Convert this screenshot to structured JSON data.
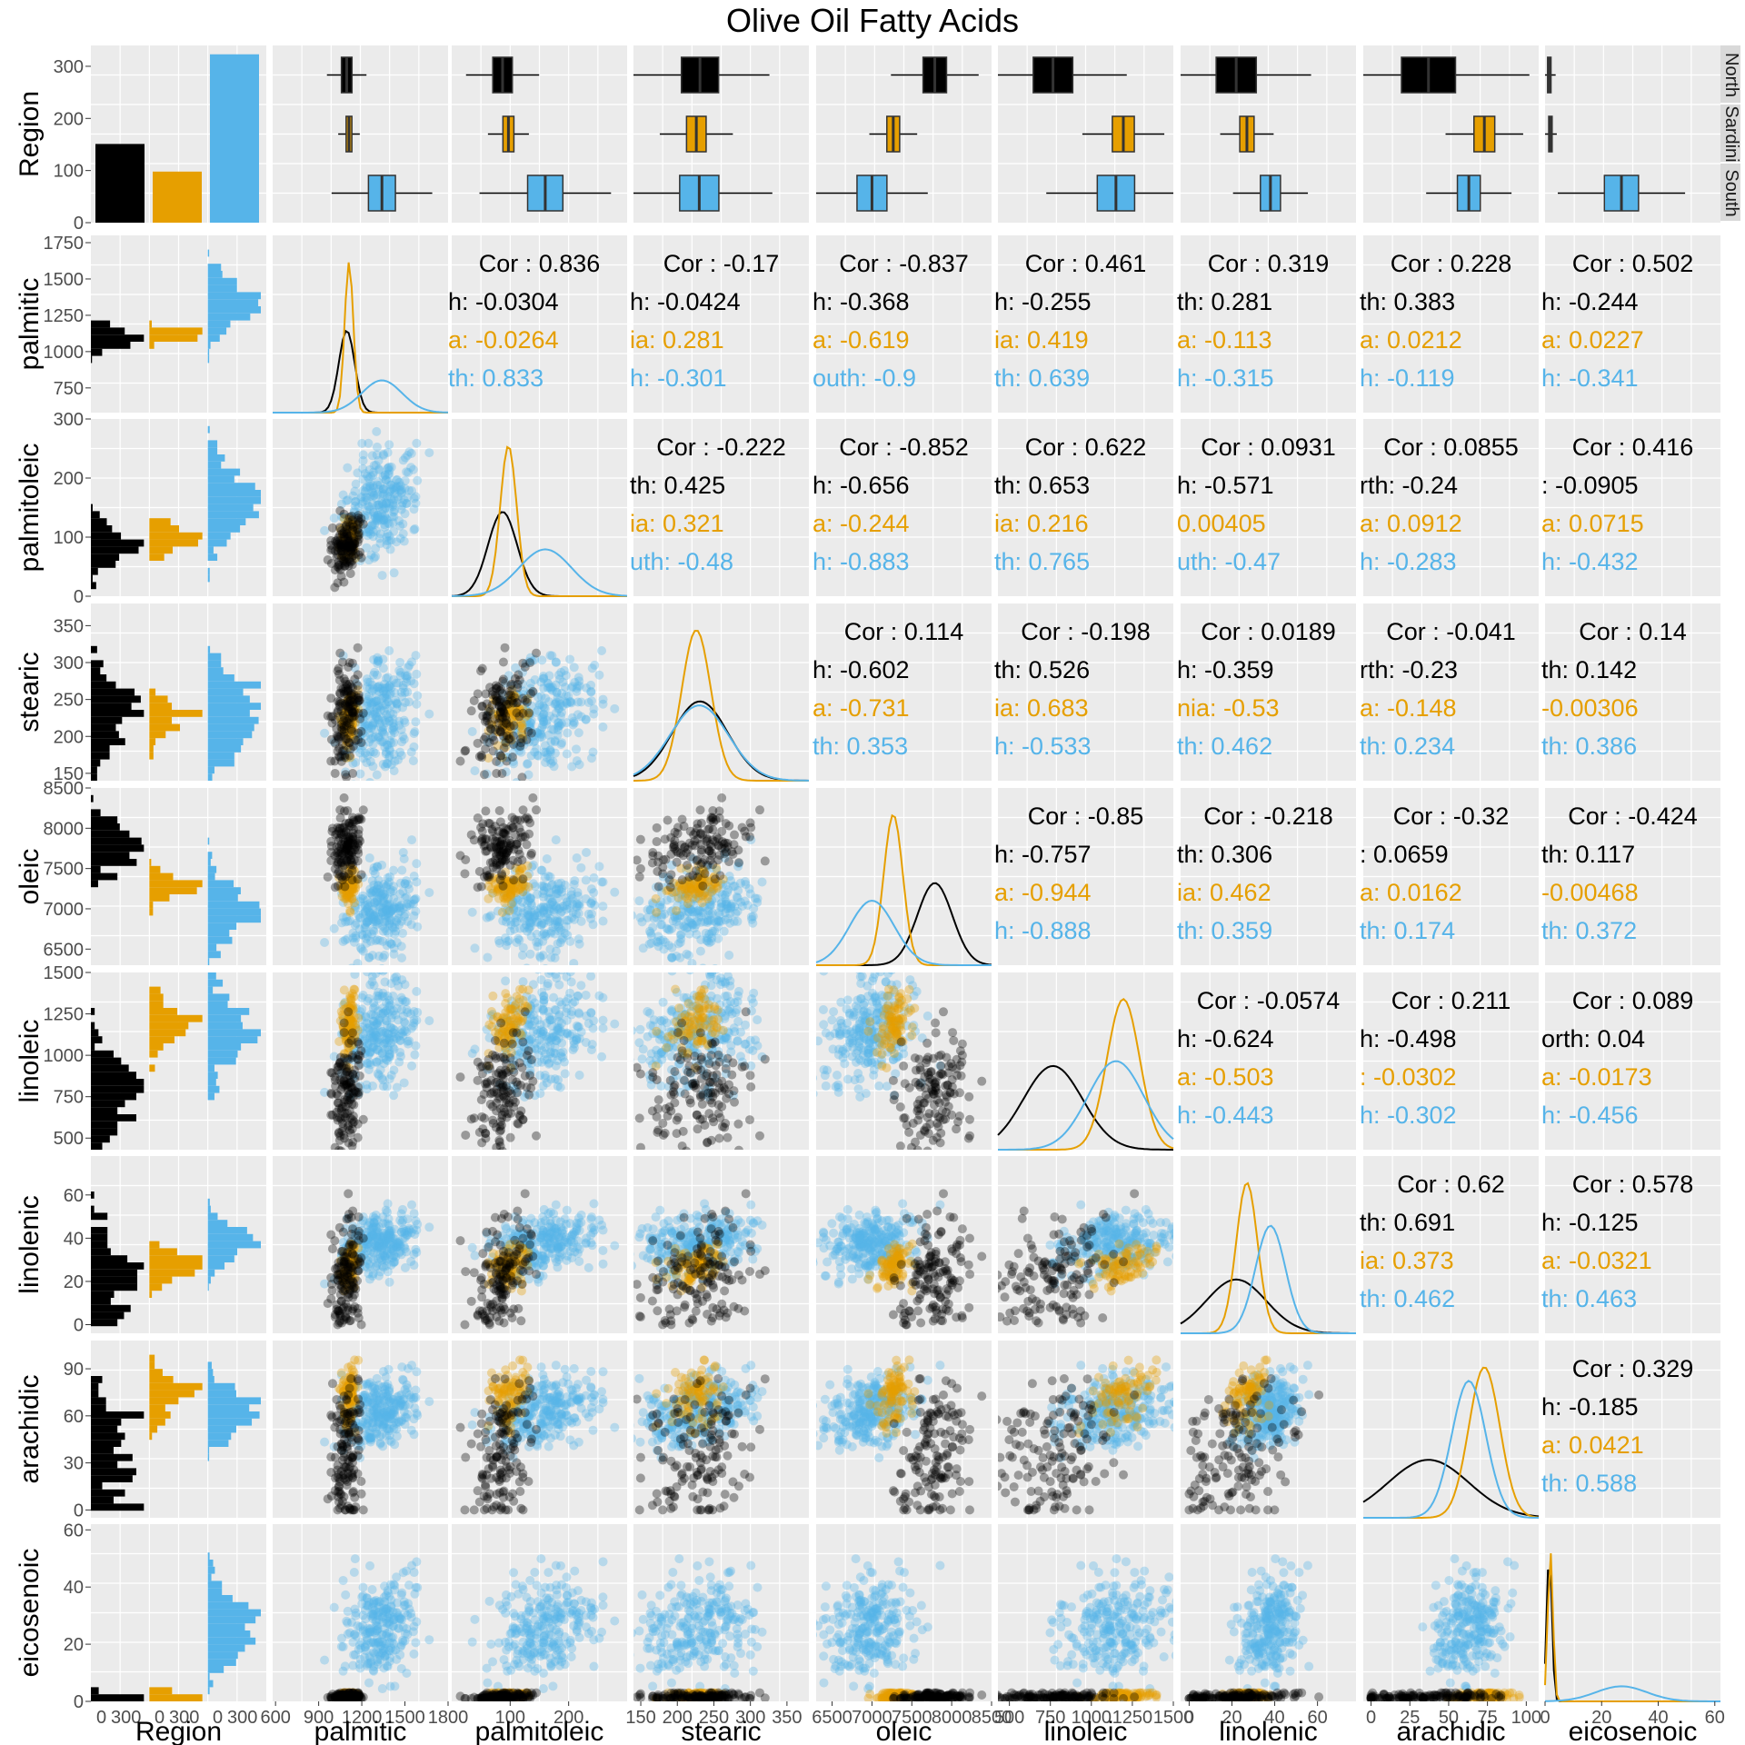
{
  "title": "Olive Oil Fatty Acids",
  "colors": {
    "North": "#000000",
    "Sardinia": "#E69F00",
    "South": "#56B4E9",
    "panel": "#ebebeb",
    "grid": "#ffffff",
    "strip": "#d9d9d9"
  },
  "chart_data": {
    "type": "scatter",
    "title": "Olive Oil Fatty Acids",
    "matrix": "pairs plot",
    "variables": [
      "Region",
      "palmitic",
      "palmitoleic",
      "stearic",
      "oleic",
      "linoleic",
      "linolenic",
      "arachidic",
      "eicosenoic"
    ],
    "groups": [
      "North",
      "Sardinia",
      "South"
    ],
    "strip_labels": [
      "North",
      "Sardini",
      "South"
    ],
    "region_counts": {
      "North": 151,
      "Sardinia": 98,
      "South": 323
    },
    "region_ticks": [
      "0",
      "300",
      "0",
      "300",
      "0",
      "300"
    ],
    "ranges": {
      "palmitic": [
        580,
        1800
      ],
      "palmitoleic": [
        0,
        300
      ],
      "stearic": [
        140,
        380
      ],
      "oleic": [
        6300,
        8500
      ],
      "linoleic": [
        430,
        1500
      ],
      "linolenic": [
        -4,
        78
      ],
      "arachidic": [
        -5,
        108
      ],
      "eicosenoic": [
        0,
        62
      ]
    },
    "x_ticks": {
      "palmitic": [
        "600",
        "900",
        "1200",
        "1500",
        "1800"
      ],
      "palmitoleic": [
        "100",
        "200"
      ],
      "stearic": [
        "150",
        "200",
        "250",
        "300",
        "350"
      ],
      "oleic": [
        "6500",
        "7000",
        "7500",
        "8000",
        "8500"
      ],
      "linoleic": [
        "500",
        "750",
        "1000",
        "1250",
        "1500"
      ],
      "linolenic": [
        "0",
        "20",
        "40",
        "60"
      ],
      "arachidic": [
        "0",
        "25",
        "50",
        "75",
        "100"
      ],
      "eicosenoic": [
        "0",
        "20",
        "40",
        "60"
      ]
    },
    "y_ticks": {
      "Region": [
        "0",
        "100",
        "200",
        "300"
      ],
      "palmitic": [
        "750",
        "1000",
        "1250",
        "1500",
        "1750"
      ],
      "palmitoleic": [
        "0",
        "100",
        "200",
        "300"
      ],
      "stearic": [
        "150",
        "200",
        "250",
        "300",
        "350"
      ],
      "oleic": [
        "6500",
        "7000",
        "7500",
        "8000",
        "8500"
      ],
      "linoleic": [
        "500",
        "750",
        "1000",
        "1250",
        "1500"
      ],
      "linolenic": [
        "0",
        "20",
        "40",
        "60"
      ],
      "arachidic": [
        "0",
        "30",
        "60",
        "90"
      ],
      "eicosenoic": [
        "0",
        "20",
        "40",
        "60"
      ]
    },
    "stats": {
      "North": {
        "palmitic": [
          1095,
          55
        ],
        "palmitoleic": [
          87,
          25
        ],
        "stearic": [
          231,
          38
        ],
        "oleic": [
          7788,
          220
        ],
        "linoleic": [
          766,
          180
        ],
        "linolenic": [
          22,
          14
        ],
        "arachidic": [
          37,
          26
        ],
        "eicosenoic": [
          1.5,
          0.9
        ]
      },
      "Sardinia": {
        "palmitic": [
          1111,
          30
        ],
        "palmitoleic": [
          97,
          14
        ],
        "stearic": [
          226,
          20
        ],
        "oleic": [
          7267,
          120
        ],
        "linoleic": [
          1195,
          100
        ],
        "linolenic": [
          27,
          5
        ],
        "arachidic": [
          73,
          10
        ],
        "eicosenoic": [
          1.9,
          0.9
        ]
      },
      "South": {
        "palmitic": [
          1340,
          140
        ],
        "palmitoleic": [
          160,
          45
        ],
        "stearic": [
          230,
          40
        ],
        "oleic": [
          7000,
          280
        ],
        "linoleic": [
          1150,
          170
        ],
        "linolenic": [
          38,
          7
        ],
        "arachidic": [
          63,
          11
        ],
        "eicosenoic": [
          27,
          9
        ]
      }
    },
    "correlations": [
      {
        "row": "palmitic",
        "col": "palmitoleic",
        "cor": "Cor : 0.836",
        "north": "h: -0.0304",
        "sardinia": "a: -0.0264",
        "south": "th: 0.833"
      },
      {
        "row": "palmitic",
        "col": "stearic",
        "cor": "Cor : -0.17",
        "north": "h: -0.0424",
        "sardinia": "ia: 0.281",
        "south": "h: -0.301"
      },
      {
        "row": "palmitic",
        "col": "oleic",
        "cor": "Cor : -0.837",
        "north": "h: -0.368",
        "sardinia": "a: -0.619",
        "south": "outh: -0.9"
      },
      {
        "row": "palmitic",
        "col": "linoleic",
        "cor": "Cor : 0.461",
        "north": "h: -0.255",
        "sardinia": "ia: 0.419",
        "south": "th: 0.639"
      },
      {
        "row": "palmitic",
        "col": "linolenic",
        "cor": "Cor : 0.319",
        "north": "th: 0.281",
        "sardinia": "a: -0.113",
        "south": "h: -0.315"
      },
      {
        "row": "palmitic",
        "col": "arachidic",
        "cor": "Cor : 0.228",
        "north": "th: 0.383",
        "sardinia": "a: 0.0212",
        "south": "h: -0.119"
      },
      {
        "row": "palmitic",
        "col": "eicosenoic",
        "cor": "Cor : 0.502",
        "north": "h: -0.244",
        "sardinia": "a: 0.0227",
        "south": "h: -0.341"
      },
      {
        "row": "palmitoleic",
        "col": "stearic",
        "cor": "Cor : -0.222",
        "north": "th: 0.425",
        "sardinia": "ia: 0.321",
        "south": "uth: -0.48"
      },
      {
        "row": "palmitoleic",
        "col": "oleic",
        "cor": "Cor : -0.852",
        "north": "h: -0.656",
        "sardinia": "a: -0.244",
        "south": "h: -0.883"
      },
      {
        "row": "palmitoleic",
        "col": "linoleic",
        "cor": "Cor : 0.622",
        "north": "th: 0.653",
        "sardinia": "ia: 0.216",
        "south": "th: 0.765"
      },
      {
        "row": "palmitoleic",
        "col": "linolenic",
        "cor": "Cor : 0.0931",
        "north": "h: -0.571",
        "sardinia": "0.00405",
        "south": "uth: -0.47"
      },
      {
        "row": "palmitoleic",
        "col": "arachidic",
        "cor": "Cor : 0.0855",
        "north": "rth: -0.24",
        "sardinia": "a: 0.0912",
        "south": "h: -0.283"
      },
      {
        "row": "palmitoleic",
        "col": "eicosenoic",
        "cor": "Cor : 0.416",
        "north": ": -0.0905",
        "sardinia": "a: 0.0715",
        "south": "h: -0.432"
      },
      {
        "row": "stearic",
        "col": "oleic",
        "cor": "Cor : 0.114",
        "north": "h: -0.602",
        "sardinia": "a: -0.731",
        "south": "th: 0.353"
      },
      {
        "row": "stearic",
        "col": "linoleic",
        "cor": "Cor : -0.198",
        "north": "th: 0.526",
        "sardinia": "ia: 0.683",
        "south": "h: -0.533"
      },
      {
        "row": "stearic",
        "col": "linolenic",
        "cor": "Cor : 0.0189",
        "north": "h: -0.359",
        "sardinia": "nia: -0.53",
        "south": "th: 0.462"
      },
      {
        "row": "stearic",
        "col": "arachidic",
        "cor": "Cor : -0.041",
        "north": "rth: -0.23",
        "sardinia": "a: -0.148",
        "south": "th: 0.234"
      },
      {
        "row": "stearic",
        "col": "eicosenoic",
        "cor": "Cor : 0.14",
        "north": "th: 0.142",
        "sardinia": "-0.00306",
        "south": "th: 0.386"
      },
      {
        "row": "oleic",
        "col": "linoleic",
        "cor": "Cor : -0.85",
        "north": "h: -0.757",
        "sardinia": "a: -0.944",
        "south": "h: -0.888"
      },
      {
        "row": "oleic",
        "col": "linolenic",
        "cor": "Cor : -0.218",
        "north": "th: 0.306",
        "sardinia": "ia: 0.462",
        "south": "th: 0.359"
      },
      {
        "row": "oleic",
        "col": "arachidic",
        "cor": "Cor : -0.32",
        "north": ": 0.0659",
        "sardinia": "a: 0.0162",
        "south": "th: 0.174"
      },
      {
        "row": "oleic",
        "col": "eicosenoic",
        "cor": "Cor : -0.424",
        "north": "th: 0.117",
        "sardinia": "-0.00468",
        "south": "th: 0.372"
      },
      {
        "row": "linoleic",
        "col": "linolenic",
        "cor": "Cor : -0.0574",
        "north": "h: -0.624",
        "sardinia": "a: -0.503",
        "south": "h: -0.443"
      },
      {
        "row": "linoleic",
        "col": "arachidic",
        "cor": "Cor : 0.211",
        "north": "h: -0.498",
        "sardinia": ": -0.0302",
        "south": "h: -0.302"
      },
      {
        "row": "linoleic",
        "col": "eicosenoic",
        "cor": "Cor : 0.089",
        "north": "orth: 0.04",
        "sardinia": "a: -0.0173",
        "south": "h: -0.456"
      },
      {
        "row": "linolenic",
        "col": "arachidic",
        "cor": "Cor : 0.62",
        "north": "th: 0.691",
        "sardinia": "ia: 0.373",
        "south": "th: 0.462"
      },
      {
        "row": "linolenic",
        "col": "eicosenoic",
        "cor": "Cor : 0.578",
        "north": "h: -0.125",
        "sardinia": "a: -0.0321",
        "south": "th: 0.463"
      },
      {
        "row": "arachidic",
        "col": "eicosenoic",
        "cor": "Cor : 0.329",
        "north": "h: -0.185",
        "sardinia": "a: 0.0421",
        "south": "th: 0.588"
      }
    ]
  }
}
